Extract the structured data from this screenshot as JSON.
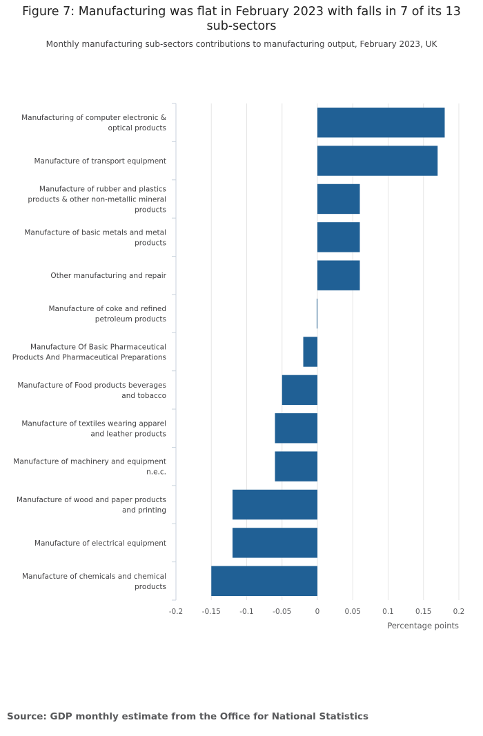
{
  "title": "Figure 7: Manufacturing was flat in February 2023 with falls in 7 of its 13 sub-sectors",
  "subtitle": "Monthly manufacturing sub-sectors contributions to manufacturing output, February 2023, UK",
  "source": "Source: GDP monthly estimate from the Office for National Statistics",
  "colors": {
    "bar": "#206095",
    "grid": "#e6e6e6",
    "axis": "#c8d2dc"
  },
  "chart_data": {
    "type": "bar",
    "orientation": "horizontal",
    "title": "Figure 7: Manufacturing was flat in February 2023 with falls in 7 of its 13 sub-sectors",
    "subtitle": "Monthly manufacturing sub-sectors contributions to manufacturing output, February 2023, UK",
    "xlabel": "Percentage points",
    "ylabel": "",
    "xlim": [
      -0.2,
      0.2
    ],
    "xticks": [
      -0.2,
      -0.15,
      -0.1,
      -0.05,
      0,
      0.05,
      0.1,
      0.15,
      0.2
    ],
    "xtick_labels": [
      "-0.2",
      "-0.15",
      "-0.1",
      "-0.05",
      "0",
      "0.05",
      "0.1",
      "0.15",
      "0.2"
    ],
    "grid": true,
    "categories": [
      [
        "Manufacturing of computer electronic &",
        "optical products"
      ],
      [
        "Manufacture of transport equipment"
      ],
      [
        "Manufacture of rubber and plastics",
        "products & other non-metallic mineral",
        "products"
      ],
      [
        "Manufacture of basic metals and metal",
        "products"
      ],
      [
        "Other manufacturing and repair"
      ],
      [
        "Manufacture of coke and refined",
        "petroleum products"
      ],
      [
        "Manufacture Of Basic Pharmaceutical",
        "Products And Pharmaceutical Preparations"
      ],
      [
        "Manufacture of Food products beverages",
        "and tobacco"
      ],
      [
        "Manufacture of textiles wearing apparel",
        "and leather products"
      ],
      [
        "Manufacture of machinery and equipment",
        "n.e.c."
      ],
      [
        "Manufacture of wood and paper products",
        "and printing"
      ],
      [
        "Manufacture of electrical equipment"
      ],
      [
        "Manufacture of chemicals and chemical",
        "products"
      ]
    ],
    "values": [
      0.18,
      0.17,
      0.06,
      0.06,
      0.06,
      -0.001,
      -0.02,
      -0.05,
      -0.06,
      -0.06,
      -0.12,
      -0.12,
      -0.15
    ]
  }
}
